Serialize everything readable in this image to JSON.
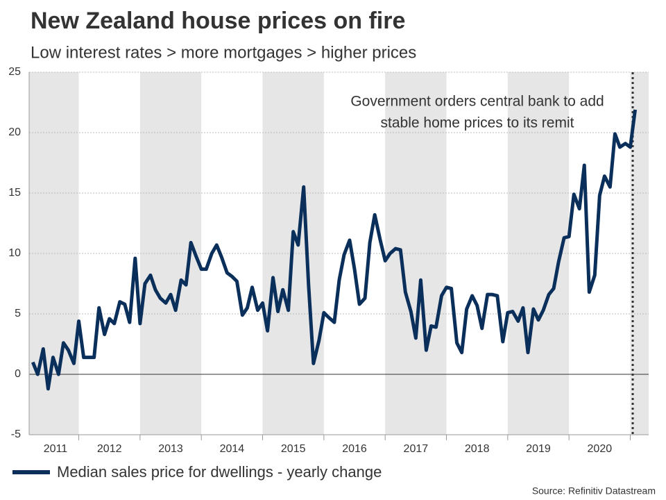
{
  "chart_data": {
    "type": "line",
    "title": "New Zealand house prices on fire",
    "subtitle": "Low interest rates > more mortgages > higher prices",
    "source": "Source: Refinitiv Datastream",
    "annotation": [
      "Government orders central bank to add",
      "stable home prices to its remit"
    ],
    "annotation_x": 2021.04,
    "x": [
      2011.25,
      2011.33,
      2011.42,
      2011.5,
      2011.58,
      2011.67,
      2011.75,
      2011.83,
      2011.92,
      2012,
      2012.08,
      2012.17,
      2012.25,
      2012.33,
      2012.42,
      2012.5,
      2012.58,
      2012.67,
      2012.75,
      2012.83,
      2012.92,
      2013,
      2013.08,
      2013.17,
      2013.25,
      2013.33,
      2013.42,
      2013.5,
      2013.58,
      2013.67,
      2013.75,
      2013.83,
      2013.92,
      2014,
      2014.08,
      2014.17,
      2014.25,
      2014.33,
      2014.42,
      2014.5,
      2014.58,
      2014.67,
      2014.75,
      2014.83,
      2014.92,
      2015,
      2015.08,
      2015.17,
      2015.25,
      2015.33,
      2015.42,
      2015.5,
      2015.58,
      2015.67,
      2015.75,
      2015.83,
      2015.92,
      2016,
      2016.08,
      2016.17,
      2016.25,
      2016.33,
      2016.42,
      2016.5,
      2016.58,
      2016.67,
      2016.75,
      2016.83,
      2016.92,
      2017,
      2017.08,
      2017.17,
      2017.25,
      2017.33,
      2017.42,
      2017.5,
      2017.58,
      2017.67,
      2017.75,
      2017.83,
      2017.92,
      2018,
      2018.08,
      2018.17,
      2018.25,
      2018.33,
      2018.42,
      2018.5,
      2018.58,
      2018.67,
      2018.75,
      2018.83,
      2018.92,
      2019,
      2019.08,
      2019.17,
      2019.25,
      2019.33,
      2019.42,
      2019.5,
      2019.58,
      2019.67,
      2019.75,
      2019.83,
      2019.92,
      2020,
      2020.08,
      2020.17,
      2020.25,
      2020.33,
      2020.42,
      2020.5,
      2020.58,
      2020.67,
      2020.75,
      2020.83,
      2020.92,
      2021,
      2021.08
    ],
    "series": [
      {
        "name": "Median sales price for dwellings - yearly change",
        "color": "#0b2f5b",
        "values": [
          1.0,
          0.0,
          2.1,
          -1.2,
          1.4,
          0.0,
          2.6,
          2.0,
          0.9,
          4.4,
          1.4,
          1.4,
          1.4,
          5.5,
          3.3,
          4.6,
          4.2,
          6.0,
          5.8,
          4.3,
          9.6,
          4.2,
          7.5,
          8.2,
          7.0,
          6.3,
          5.9,
          6.6,
          5.3,
          7.8,
          7.4,
          10.9,
          9.7,
          8.7,
          8.7,
          10.0,
          10.7,
          9.7,
          8.4,
          8.1,
          7.7,
          4.9,
          5.5,
          7.2,
          5.3,
          5.9,
          3.6,
          8.0,
          5.2,
          7.0,
          5.3,
          11.8,
          10.7,
          15.5,
          7.4,
          0.9,
          2.8,
          5.1,
          4.7,
          4.3,
          7.8,
          9.9,
          11.1,
          8.7,
          5.8,
          6.3,
          10.9,
          13.2,
          11.1,
          9.4,
          10.0,
          10.4,
          10.3,
          6.8,
          5.2,
          3.0,
          7.8,
          2.0,
          4.0,
          3.9,
          6.5,
          7.2,
          7.1,
          2.6,
          1.8,
          5.4,
          6.5,
          5.7,
          3.8,
          6.6,
          6.6,
          6.5,
          2.7,
          5.1,
          5.2,
          4.4,
          5.5,
          1.8,
          5.4,
          4.5,
          5.3,
          6.6,
          7.1,
          9.3,
          11.3,
          11.4,
          14.9,
          13.7,
          17.3,
          6.8,
          8.2,
          14.8,
          16.4,
          15.5,
          19.9,
          18.8,
          19.1,
          18.8,
          21.9
        ]
      }
    ],
    "xlim": [
      2011.19,
      2021.3
    ],
    "xticks": [
      {
        "value": 2011.62,
        "label": "2011"
      },
      {
        "value": 2012.5,
        "label": "2012"
      },
      {
        "value": 2013.5,
        "label": "2013"
      },
      {
        "value": 2014.5,
        "label": "2014"
      },
      {
        "value": 2015.5,
        "label": "2015"
      },
      {
        "value": 2016.5,
        "label": "2016"
      },
      {
        "value": 2017.5,
        "label": "2017"
      },
      {
        "value": 2018.5,
        "label": "2018"
      },
      {
        "value": 2019.5,
        "label": "2019"
      },
      {
        "value": 2020.5,
        "label": "2020"
      }
    ],
    "ylim": [
      -5,
      25
    ],
    "yticks": [
      -5,
      0,
      5,
      10,
      15,
      20,
      25
    ],
    "grid": true
  }
}
